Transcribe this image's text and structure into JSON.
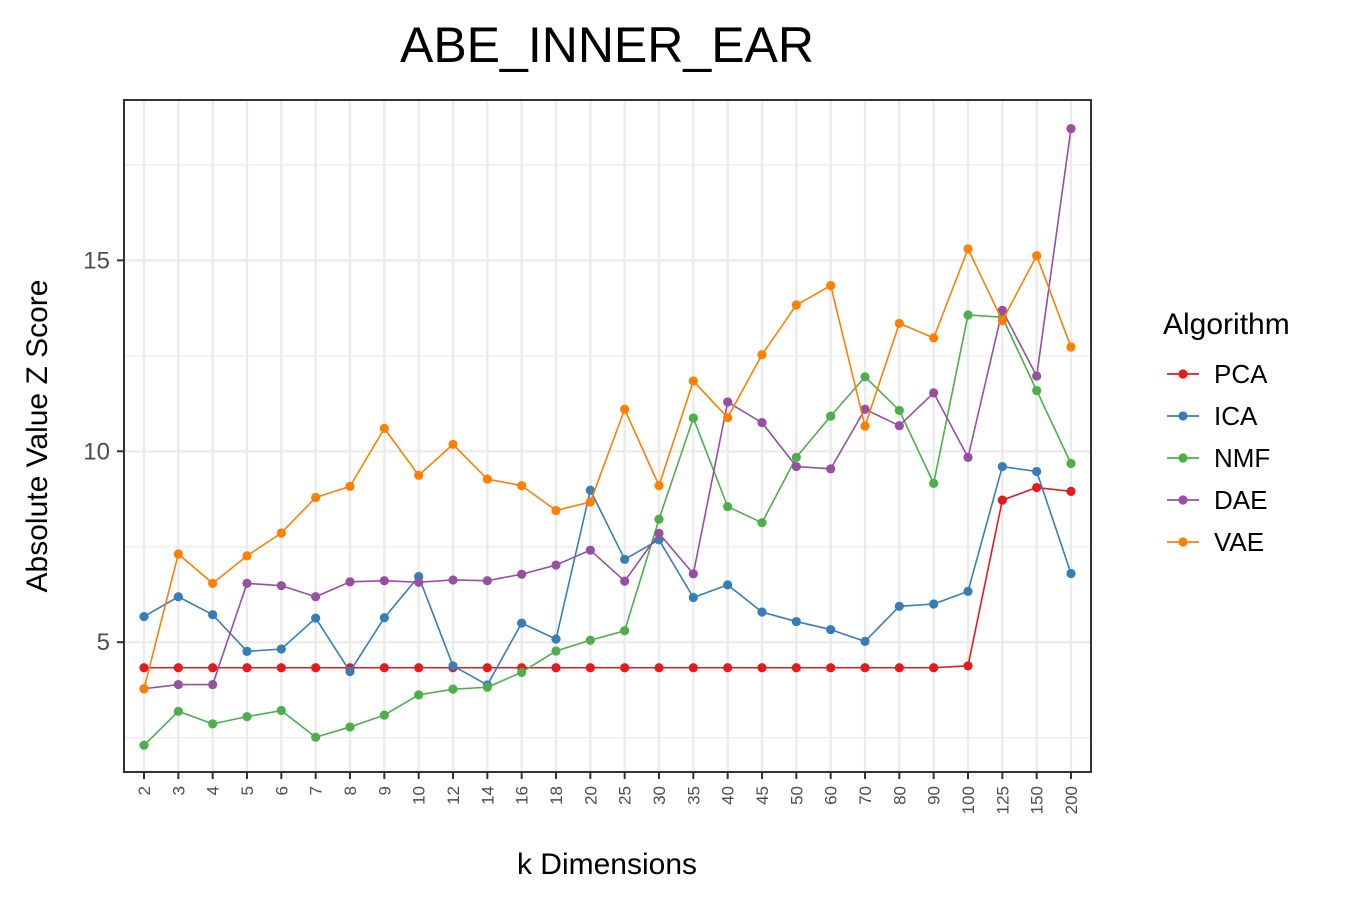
{
  "chart_data": {
    "type": "line",
    "title": "ABE_INNER_EAR",
    "xlabel": "k Dimensions",
    "ylabel": "Absolute Value Z Score",
    "categories": [
      "2",
      "3",
      "4",
      "5",
      "6",
      "7",
      "8",
      "9",
      "10",
      "12",
      "14",
      "16",
      "18",
      "20",
      "25",
      "30",
      "35",
      "40",
      "45",
      "50",
      "60",
      "70",
      "80",
      "90",
      "100",
      "125",
      "150",
      "200"
    ],
    "ylim": [
      1.6,
      19.2
    ],
    "yticks": [
      5,
      10,
      15
    ],
    "yticks_labels": [
      "5",
      "10",
      "15"
    ],
    "grid": true,
    "legend": {
      "title": "Algorithm",
      "position": "right"
    },
    "series": [
      {
        "name": "PCA",
        "color": "#e41a1c",
        "values": [
          4.33,
          4.33,
          4.33,
          4.33,
          4.33,
          4.33,
          4.33,
          4.33,
          4.33,
          4.33,
          4.33,
          4.33,
          4.33,
          4.33,
          4.33,
          4.33,
          4.33,
          4.33,
          4.33,
          4.33,
          4.33,
          4.33,
          4.33,
          4.33,
          4.38,
          8.72,
          9.05,
          8.95
        ]
      },
      {
        "name": "ICA",
        "color": "#377eb8",
        "values": [
          5.67,
          6.19,
          5.72,
          4.76,
          4.82,
          5.63,
          4.23,
          5.64,
          6.72,
          4.38,
          3.88,
          5.5,
          5.08,
          8.98,
          7.17,
          7.68,
          6.17,
          6.5,
          5.79,
          5.54,
          5.33,
          5.02,
          5.94,
          6.0,
          6.33,
          9.6,
          9.47,
          6.8
        ]
      },
      {
        "name": "NMF",
        "color": "#4daf4a",
        "values": [
          2.3,
          3.19,
          2.86,
          3.05,
          3.21,
          2.51,
          2.78,
          3.09,
          3.62,
          3.77,
          3.82,
          4.21,
          4.77,
          5.05,
          5.3,
          8.22,
          10.87,
          8.55,
          8.13,
          9.84,
          10.92,
          11.95,
          11.07,
          9.16,
          13.57,
          13.51,
          11.59,
          9.68
        ]
      },
      {
        "name": "DAE",
        "color": "#984ea3",
        "values": [
          3.78,
          3.89,
          3.89,
          6.54,
          6.48,
          6.19,
          6.58,
          6.61,
          6.57,
          6.63,
          6.61,
          6.78,
          7.02,
          7.41,
          6.6,
          7.85,
          6.79,
          11.29,
          10.75,
          9.6,
          9.54,
          11.1,
          10.67,
          11.53,
          9.84,
          13.69,
          11.97,
          18.45
        ]
      },
      {
        "name": "VAE",
        "color": "#ff7f00",
        "values": [
          3.78,
          7.31,
          6.54,
          7.26,
          7.86,
          8.79,
          9.08,
          10.6,
          9.37,
          10.18,
          9.27,
          9.1,
          8.45,
          8.67,
          11.1,
          9.1,
          11.84,
          10.88,
          12.53,
          13.83,
          14.34,
          10.66,
          13.35,
          12.97,
          15.3,
          13.42,
          15.12,
          12.73
        ]
      }
    ]
  }
}
